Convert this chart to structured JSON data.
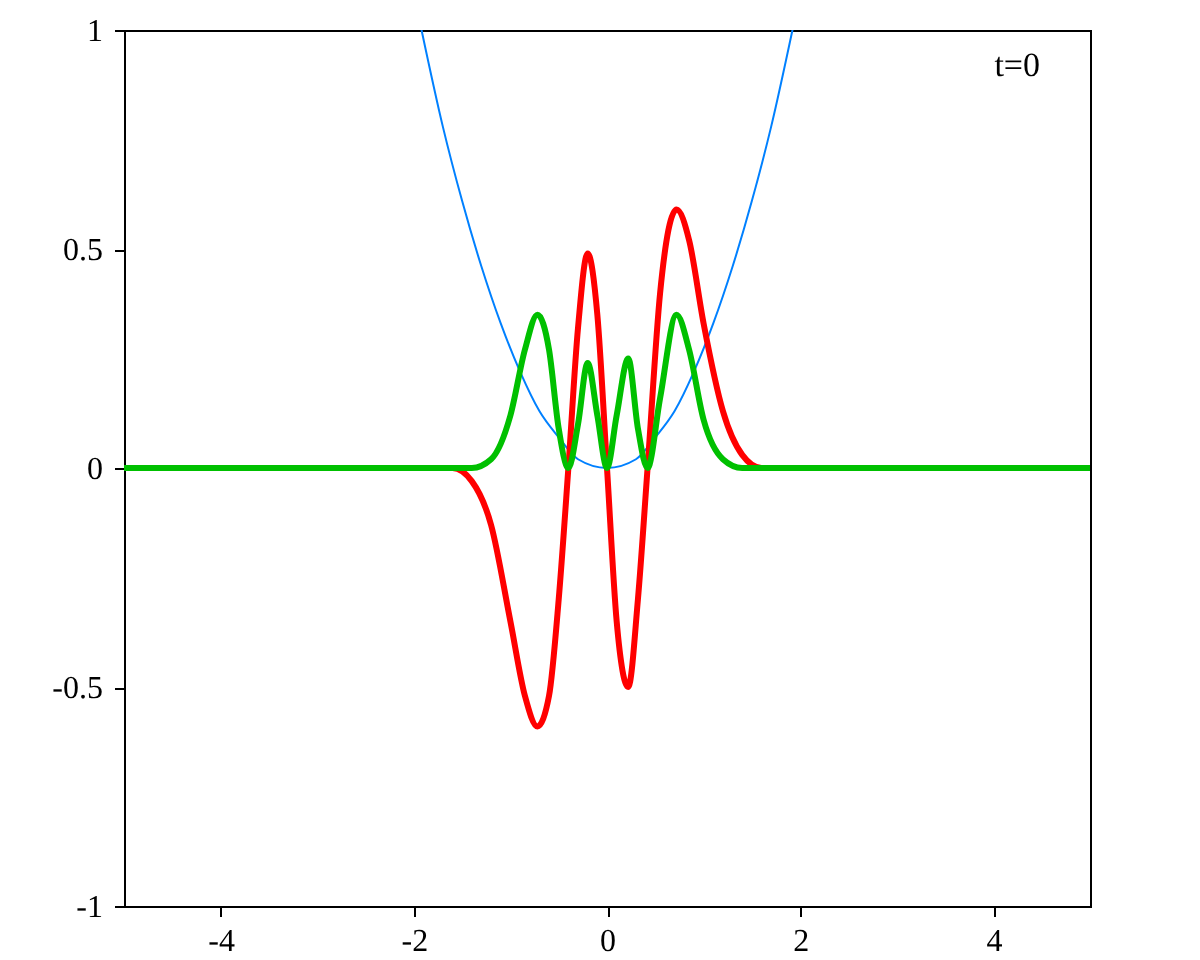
{
  "chart_data": {
    "type": "line",
    "xlim": [
      -5,
      5
    ],
    "ylim": [
      -1,
      1
    ],
    "xticks": [
      -4,
      -2,
      0,
      2,
      4
    ],
    "yticks": [
      -1,
      -0.5,
      0,
      0.5,
      1
    ],
    "grid": false,
    "marker": "none",
    "line_style": "solid",
    "annotations": [
      "t=0"
    ],
    "series": [
      {
        "color": "#0080ff",
        "x": [
          -1.92,
          -1.7,
          -1.5,
          -1.3,
          -1.1,
          -0.9,
          -0.7,
          -0.5,
          -0.3,
          0,
          0.3,
          0.5,
          0.7,
          0.9,
          1.1,
          1.3,
          1.5,
          1.7,
          1.92
        ],
        "values": [
          1.0,
          0.78,
          0.61,
          0.46,
          0.33,
          0.22,
          0.13,
          0.07,
          0.02,
          0,
          0.02,
          0.07,
          0.13,
          0.22,
          0.33,
          0.46,
          0.61,
          0.78,
          1.0
        ]
      },
      {
        "color": "#ff0000",
        "x": [
          -5,
          -1.6,
          -1.4,
          -1.2,
          -1.0,
          -0.85,
          -0.72,
          -0.6,
          -0.5,
          -0.4,
          -0.3,
          -0.2,
          -0.1,
          0,
          0.1,
          0.22,
          0.32,
          0.42,
          0.55,
          0.72,
          0.85,
          1.0,
          1.2,
          1.4,
          1.6,
          5
        ],
        "values": [
          0,
          0,
          -0.03,
          -0.13,
          -0.35,
          -0.52,
          -0.59,
          -0.52,
          -0.3,
          0,
          0.32,
          0.49,
          0.35,
          0,
          -0.35,
          -0.5,
          -0.3,
          0,
          0.4,
          0.59,
          0.52,
          0.33,
          0.13,
          0.03,
          0,
          0
        ]
      },
      {
        "color": "#00c000",
        "x": [
          -5,
          -1.4,
          -1.2,
          -1.0,
          -0.85,
          -0.72,
          -0.6,
          -0.5,
          -0.4,
          -0.3,
          -0.2,
          -0.1,
          0,
          0.1,
          0.22,
          0.32,
          0.42,
          0.55,
          0.72,
          0.85,
          1.0,
          1.2,
          1.4,
          5
        ],
        "values": [
          0,
          0,
          0.02,
          0.12,
          0.27,
          0.35,
          0.27,
          0.09,
          0,
          0.1,
          0.24,
          0.12,
          0,
          0.12,
          0.25,
          0.09,
          0,
          0.16,
          0.35,
          0.27,
          0.11,
          0.02,
          0,
          0
        ]
      }
    ]
  }
}
